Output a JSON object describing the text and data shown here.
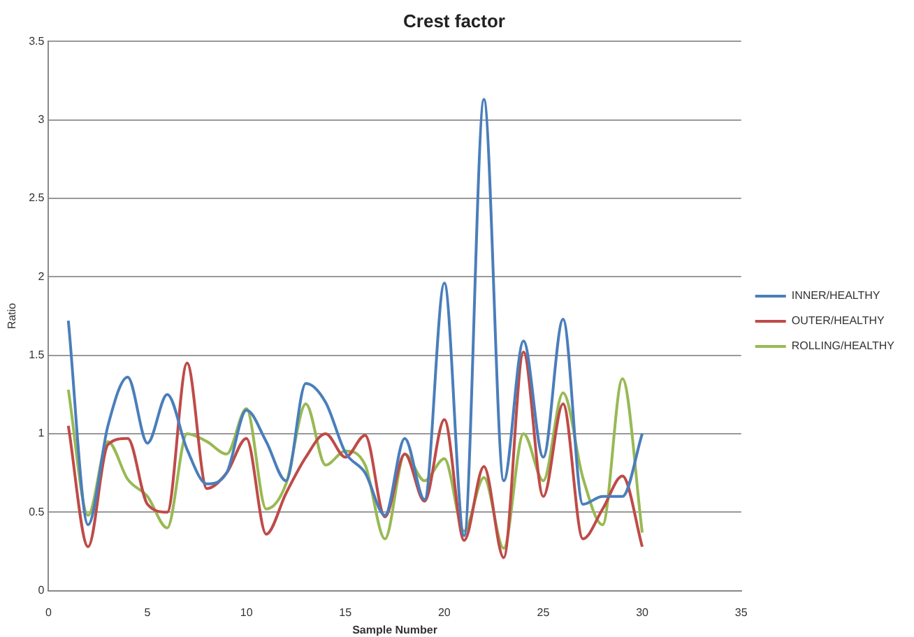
{
  "chart_data": {
    "type": "line",
    "title": "Crest factor",
    "xlabel": "Sample Number",
    "ylabel": "Ratio",
    "x": [
      1,
      2,
      3,
      4,
      5,
      6,
      7,
      8,
      9,
      10,
      11,
      12,
      13,
      14,
      15,
      16,
      17,
      18,
      19,
      20,
      21,
      22,
      23,
      24,
      25,
      26,
      27,
      28,
      29,
      30
    ],
    "series": [
      {
        "name": "INNER/HEALTHY",
        "color": "#4a7ebb",
        "values": [
          1.72,
          0.42,
          1.05,
          1.36,
          0.94,
          1.25,
          0.9,
          0.68,
          0.75,
          1.15,
          0.95,
          0.7,
          1.32,
          1.2,
          0.88,
          0.75,
          0.48,
          0.97,
          0.58,
          1.96,
          0.35,
          3.13,
          0.7,
          1.59,
          0.85,
          1.73,
          0.55,
          0.6,
          0.6,
          1.0
        ]
      },
      {
        "name": "OUTER/HEALTHY",
        "color": "#be4b48",
        "values": [
          1.05,
          0.28,
          0.93,
          0.97,
          0.55,
          0.5,
          1.45,
          0.65,
          0.75,
          0.97,
          0.36,
          0.62,
          0.85,
          1.0,
          0.85,
          0.99,
          0.47,
          0.87,
          0.57,
          1.09,
          0.32,
          0.79,
          0.21,
          1.52,
          0.6,
          1.19,
          0.33,
          0.52,
          0.73,
          0.28
        ]
      },
      {
        "name": "ROLLING/HEALTHY",
        "color": "#98b954",
        "values": [
          1.28,
          0.48,
          0.95,
          0.71,
          0.6,
          0.4,
          1.0,
          0.95,
          0.87,
          1.16,
          0.52,
          0.68,
          1.19,
          0.8,
          0.89,
          0.8,
          0.33,
          0.87,
          0.7,
          0.84,
          0.38,
          0.72,
          0.27,
          1.0,
          0.7,
          1.26,
          0.72,
          0.42,
          1.35,
          0.37
        ]
      }
    ],
    "xlim": [
      0,
      35
    ],
    "xticks": [
      0,
      5,
      10,
      15,
      20,
      25,
      30,
      35
    ],
    "ylim": [
      0,
      3.5
    ],
    "yticks": [
      0,
      0.5,
      1,
      1.5,
      2,
      2.5,
      3,
      3.5
    ],
    "grid": "y",
    "legend": "right",
    "marker": "none",
    "line_style": "solid"
  }
}
